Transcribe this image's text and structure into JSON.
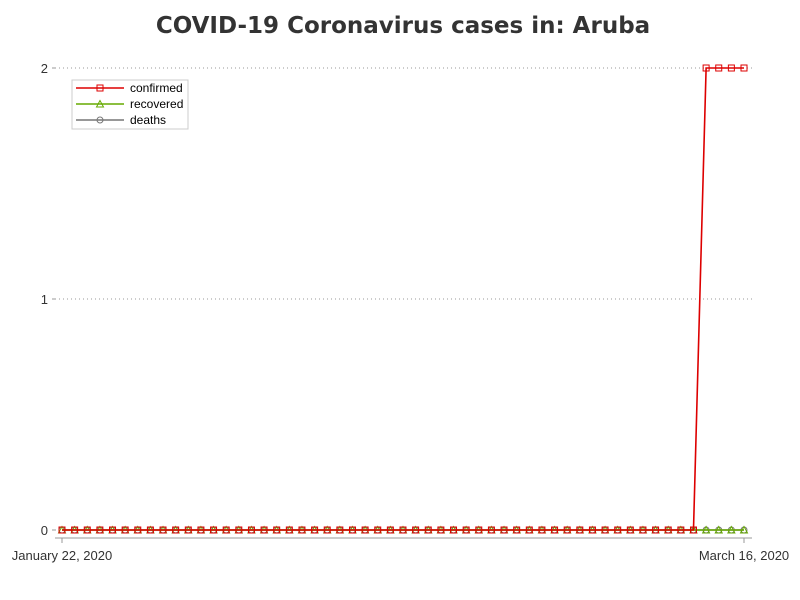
{
  "chart_data": {
    "type": "line",
    "title": "COVID-19 Coronavirus cases in: Aruba",
    "xlabel": "",
    "ylabel": "",
    "x_start": "2020-01-22",
    "x_end": "2020-03-16",
    "x_tick_labels": [
      "January 22, 2020",
      "March 16, 2020"
    ],
    "ylim": [
      0,
      2
    ],
    "y_ticks": [
      0,
      1,
      2
    ],
    "grid": "horizontal dotted",
    "legend_position": "top-left",
    "x": [
      "2020-01-22",
      "2020-01-23",
      "2020-01-24",
      "2020-01-25",
      "2020-01-26",
      "2020-01-27",
      "2020-01-28",
      "2020-01-29",
      "2020-01-30",
      "2020-01-31",
      "2020-02-01",
      "2020-02-02",
      "2020-02-03",
      "2020-02-04",
      "2020-02-05",
      "2020-02-06",
      "2020-02-07",
      "2020-02-08",
      "2020-02-09",
      "2020-02-10",
      "2020-02-11",
      "2020-02-12",
      "2020-02-13",
      "2020-02-14",
      "2020-02-15",
      "2020-02-16",
      "2020-02-17",
      "2020-02-18",
      "2020-02-19",
      "2020-02-20",
      "2020-02-21",
      "2020-02-22",
      "2020-02-23",
      "2020-02-24",
      "2020-02-25",
      "2020-02-26",
      "2020-02-27",
      "2020-02-28",
      "2020-02-29",
      "2020-03-01",
      "2020-03-02",
      "2020-03-03",
      "2020-03-04",
      "2020-03-05",
      "2020-03-06",
      "2020-03-07",
      "2020-03-08",
      "2020-03-09",
      "2020-03-10",
      "2020-03-11",
      "2020-03-12",
      "2020-03-13",
      "2020-03-14",
      "2020-03-15",
      "2020-03-16"
    ],
    "series": [
      {
        "name": "confirmed",
        "color": "#dd0000",
        "marker": "square",
        "values": [
          0,
          0,
          0,
          0,
          0,
          0,
          0,
          0,
          0,
          0,
          0,
          0,
          0,
          0,
          0,
          0,
          0,
          0,
          0,
          0,
          0,
          0,
          0,
          0,
          0,
          0,
          0,
          0,
          0,
          0,
          0,
          0,
          0,
          0,
          0,
          0,
          0,
          0,
          0,
          0,
          0,
          0,
          0,
          0,
          0,
          0,
          0,
          0,
          0,
          0,
          0,
          2,
          2,
          2,
          2
        ]
      },
      {
        "name": "recovered",
        "color": "#66aa00",
        "marker": "triangle",
        "values": [
          0,
          0,
          0,
          0,
          0,
          0,
          0,
          0,
          0,
          0,
          0,
          0,
          0,
          0,
          0,
          0,
          0,
          0,
          0,
          0,
          0,
          0,
          0,
          0,
          0,
          0,
          0,
          0,
          0,
          0,
          0,
          0,
          0,
          0,
          0,
          0,
          0,
          0,
          0,
          0,
          0,
          0,
          0,
          0,
          0,
          0,
          0,
          0,
          0,
          0,
          0,
          0,
          0,
          0,
          0
        ]
      },
      {
        "name": "deaths",
        "color": "#777777",
        "marker": "circle",
        "values": [
          0,
          0,
          0,
          0,
          0,
          0,
          0,
          0,
          0,
          0,
          0,
          0,
          0,
          0,
          0,
          0,
          0,
          0,
          0,
          0,
          0,
          0,
          0,
          0,
          0,
          0,
          0,
          0,
          0,
          0,
          0,
          0,
          0,
          0,
          0,
          0,
          0,
          0,
          0,
          0,
          0,
          0,
          0,
          0,
          0,
          0,
          0,
          0,
          0,
          0,
          0,
          0,
          0,
          0,
          0
        ]
      }
    ]
  }
}
